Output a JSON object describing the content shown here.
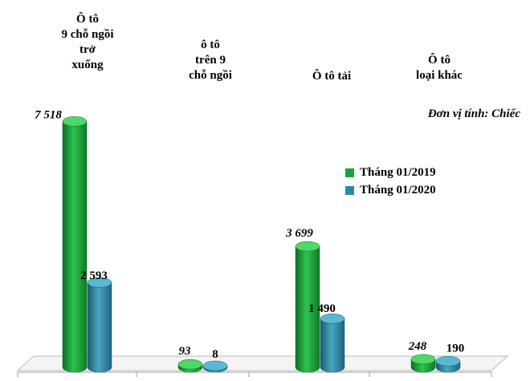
{
  "chart_data": {
    "type": "bar",
    "categories": [
      "Ô tô\n9 chỗ ngồi\ntrở\nxuống",
      "ô tô\ntrên 9\nchỗ ngồi",
      "Ô tô tải",
      "Ô tô\nloại khác"
    ],
    "series": [
      {
        "name": "Tháng 01/2019",
        "values": [
          7518,
          93,
          3699,
          248
        ],
        "labels": [
          "7 518",
          "93",
          "3 699",
          "248"
        ],
        "color": "#1aa53a",
        "dark": "#0c6e22",
        "light": "#4fd76a",
        "label_style": "italic"
      },
      {
        "name": "Tháng 01/2020",
        "values": [
          2593,
          8,
          1490,
          190
        ],
        "labels": [
          "2 593",
          "8",
          "1 490",
          "190"
        ],
        "color": "#2d8aa6",
        "dark": "#1a5a70",
        "light": "#5ab8d4",
        "label_style": "normal"
      }
    ],
    "unit_note": "Đơn vị tính: Chiếc",
    "ylim": [
      0,
      7600
    ],
    "legend_position": "right"
  }
}
